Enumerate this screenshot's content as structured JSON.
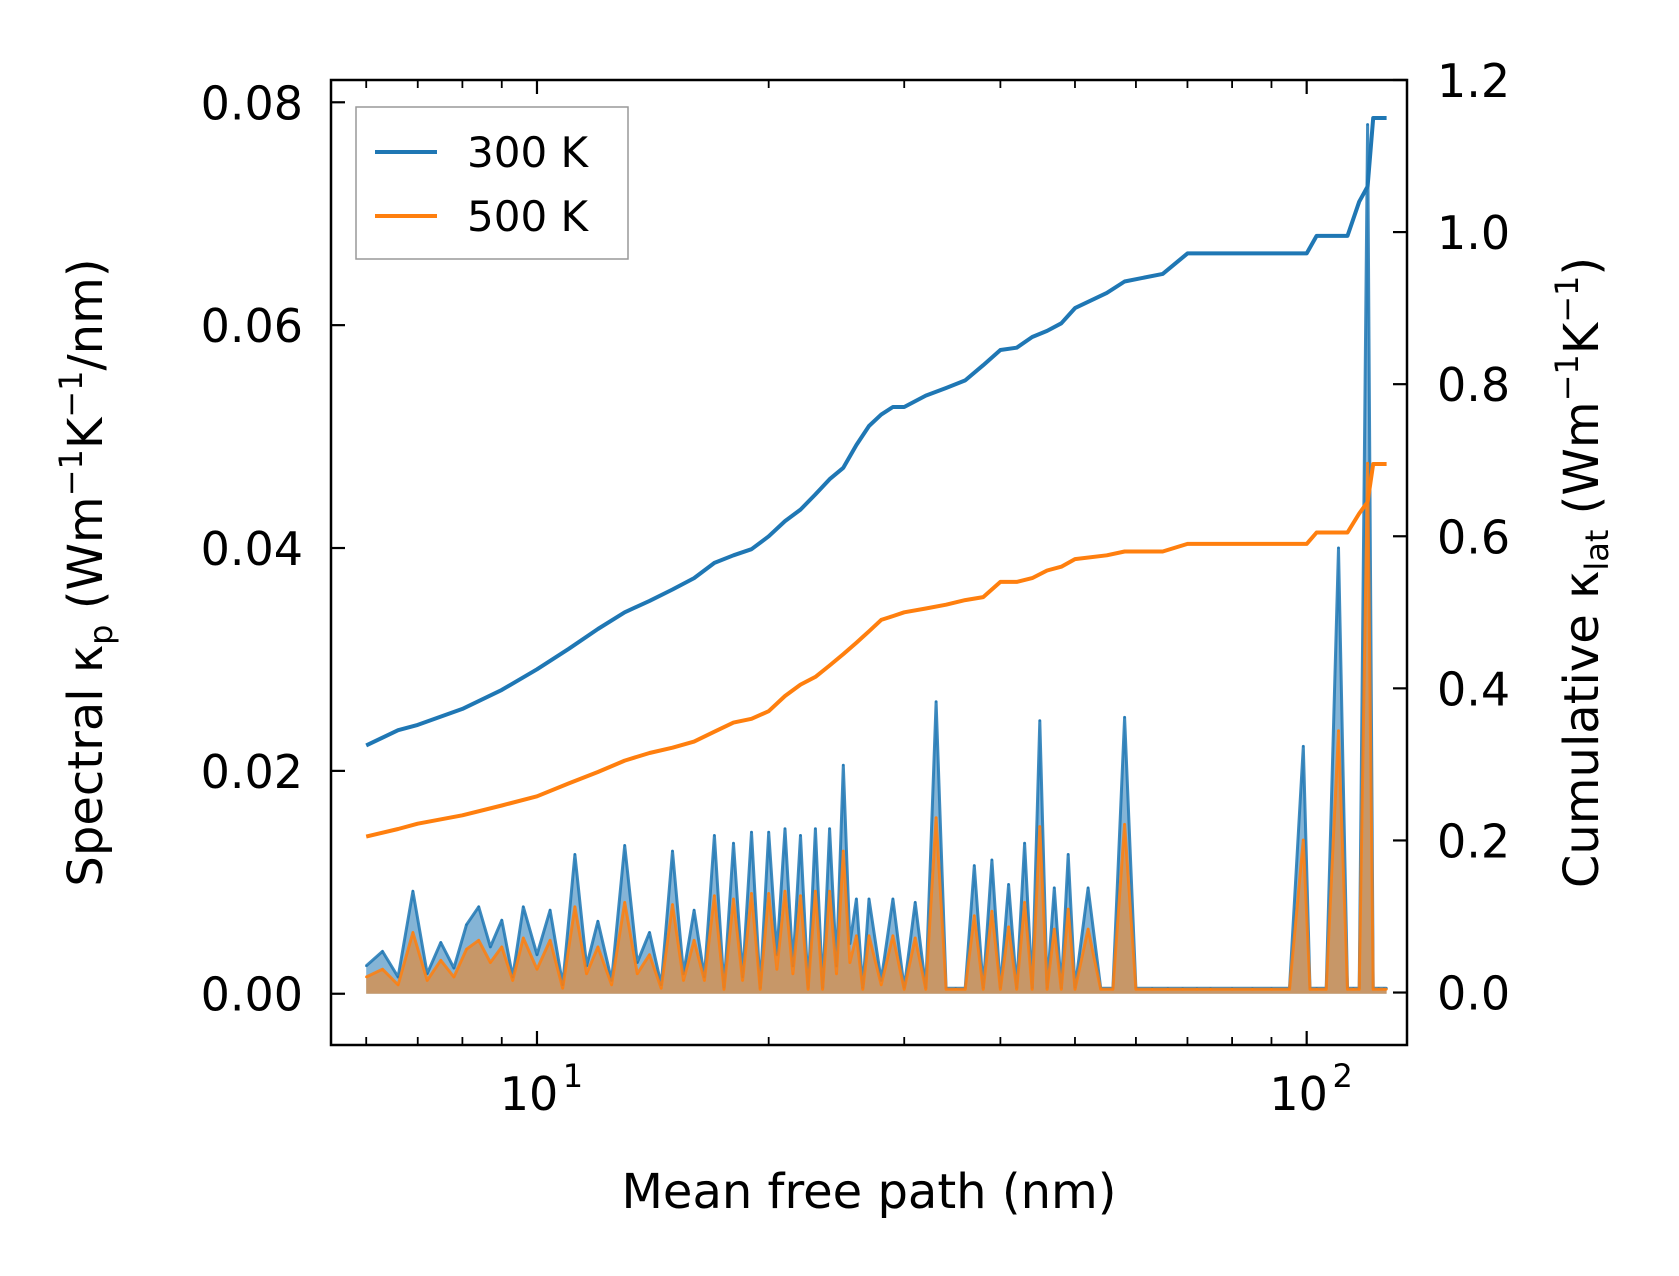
{
  "chart_data": {
    "type": "line",
    "xscale": "log",
    "xlabel": "Mean free path (nm)",
    "ylabel_left": "Spectral κ",
    "ylabel_left_sub": "p",
    "ylabel_left_units": "(Wm",
    "ylabel_right": "Cumulative κ",
    "ylabel_right_sub": "lat",
    "ylabel_right_units": "(Wm",
    "unit_sup": "−1",
    "unit_K": "K",
    "unit_per_nm": "/nm)",
    "unit_close": ")",
    "xlim": [
      5.4,
      135
    ],
    "ylim_left": [
      -0.0046,
      0.082
    ],
    "ylim_right": [
      -0.069,
      1.2
    ],
    "x_ticks": [
      {
        "value": 10,
        "base": "10",
        "exp": "1"
      },
      {
        "value": 100,
        "base": "10",
        "exp": "2"
      }
    ],
    "y_left_ticks": [
      "0.00",
      "0.02",
      "0.04",
      "0.06",
      "0.08"
    ],
    "y_right_ticks": [
      "0.0",
      "0.2",
      "0.4",
      "0.6",
      "0.8",
      "1.0",
      "1.2"
    ],
    "legend": {
      "placement": "top-left",
      "entries": [
        {
          "label": "300 K",
          "color": "#1f77b4"
        },
        {
          "label": "500 K",
          "color": "#ff7f0e"
        }
      ]
    },
    "series": [
      {
        "name": "300 K",
        "color": "#1f77b4",
        "cumulative": {
          "x": [
            6.0,
            6.6,
            7.0,
            8.0,
            9.0,
            10.0,
            11.0,
            12.0,
            13.0,
            14.0,
            15.0,
            16.0,
            17.0,
            18.0,
            19.0,
            20.0,
            21.0,
            22.0,
            23.0,
            24.0,
            25.0,
            26.0,
            27.0,
            28.0,
            29.0,
            30.0,
            32.0,
            34.0,
            36.0,
            38.0,
            40.0,
            42.0,
            44.0,
            46.0,
            48.0,
            50.0,
            55.0,
            58.0,
            65.0,
            70.0,
            80.0,
            90.0,
            100.0,
            103.0,
            113.0,
            117.0,
            120.0,
            122.0,
            127.0
          ],
          "y": [
            0.325,
            0.345,
            0.352,
            0.373,
            0.398,
            0.425,
            0.452,
            0.478,
            0.5,
            0.515,
            0.53,
            0.545,
            0.565,
            0.575,
            0.583,
            0.6,
            0.62,
            0.635,
            0.655,
            0.675,
            0.69,
            0.72,
            0.745,
            0.76,
            0.77,
            0.77,
            0.785,
            0.795,
            0.805,
            0.825,
            0.845,
            0.848,
            0.862,
            0.87,
            0.88,
            0.9,
            0.92,
            0.935,
            0.945,
            0.972,
            0.972,
            0.972,
            0.972,
            0.995,
            0.995,
            1.04,
            1.06,
            1.15,
            1.15
          ]
        },
        "spectral": {
          "x": [
            6.0,
            6.3,
            6.6,
            6.9,
            7.2,
            7.5,
            7.8,
            8.1,
            8.4,
            8.7,
            9.0,
            9.3,
            9.6,
            10.0,
            10.4,
            10.8,
            11.2,
            11.6,
            12.0,
            12.5,
            13.0,
            13.5,
            14.0,
            14.5,
            15.0,
            15.5,
            16.0,
            16.5,
            17.0,
            17.5,
            18.0,
            18.5,
            19.0,
            19.5,
            20.0,
            20.5,
            21.0,
            21.5,
            22.0,
            22.5,
            23.0,
            23.5,
            24.0,
            24.5,
            25.0,
            25.5,
            26.0,
            26.5,
            27.0,
            28.0,
            29.0,
            30.0,
            31.0,
            32.0,
            33.0,
            34.0,
            35.0,
            36.0,
            37.0,
            38.0,
            39.0,
            40.0,
            41.0,
            42.0,
            43.0,
            44.0,
            45.0,
            46.0,
            47.0,
            48.0,
            49.0,
            50.0,
            52.0,
            54.0,
            56.0,
            58.0,
            60.0,
            63.0,
            66.0,
            69.0,
            72.0,
            75.0,
            80.0,
            85.0,
            90.0,
            95.0,
            99.0,
            101.0,
            103.0,
            106.0,
            110.0,
            113.0,
            115.0,
            117.0,
            120.0,
            122.0,
            124.0,
            126.0,
            127.0
          ],
          "y": [
            0.0025,
            0.0038,
            0.0015,
            0.0092,
            0.0018,
            0.0046,
            0.0023,
            0.0062,
            0.0078,
            0.0042,
            0.0066,
            0.0015,
            0.0078,
            0.0035,
            0.0075,
            0.0008,
            0.0125,
            0.0025,
            0.0065,
            0.0012,
            0.0133,
            0.0028,
            0.0055,
            0.0008,
            0.0128,
            0.0018,
            0.0075,
            0.0015,
            0.0142,
            0.0005,
            0.0135,
            0.0015,
            0.0145,
            0.0005,
            0.0145,
            0.0035,
            0.0148,
            0.0025,
            0.0142,
            0.0005,
            0.0148,
            0.0005,
            0.0148,
            0.0025,
            0.0205,
            0.0045,
            0.0085,
            0.0005,
            0.0085,
            0.0012,
            0.0085,
            0.0005,
            0.0082,
            0.0005,
            0.0262,
            0.0005,
            0.0005,
            0.0005,
            0.0115,
            0.0005,
            0.012,
            0.0005,
            0.0098,
            0.0005,
            0.0135,
            0.0005,
            0.0245,
            0.0005,
            0.0095,
            0.0005,
            0.0125,
            0.0005,
            0.0095,
            0.0005,
            0.0005,
            0.0248,
            0.0005,
            0.0005,
            0.0005,
            0.0005,
            0.0005,
            0.0005,
            0.0005,
            0.0005,
            0.0005,
            0.0005,
            0.0222,
            0.0005,
            0.0005,
            0.0005,
            0.04,
            0.0005,
            0.0005,
            0.0005,
            0.078,
            0.0005,
            0.0005,
            0.0005,
            0.0005
          ]
        }
      },
      {
        "name": "500 K",
        "color": "#ff7f0e",
        "cumulative": {
          "x": [
            6.0,
            6.6,
            7.0,
            8.0,
            9.0,
            10.0,
            11.0,
            12.0,
            13.0,
            14.0,
            15.0,
            16.0,
            17.0,
            18.0,
            19.0,
            20.0,
            21.0,
            22.0,
            23.0,
            24.0,
            25.0,
            26.0,
            27.0,
            28.0,
            29.0,
            30.0,
            32.0,
            34.0,
            36.0,
            38.0,
            40.0,
            42.0,
            44.0,
            46.0,
            48.0,
            50.0,
            55.0,
            58.0,
            65.0,
            70.0,
            80.0,
            90.0,
            100.0,
            103.0,
            113.0,
            117.0,
            120.0,
            122.0,
            127.0
          ],
          "y": [
            0.205,
            0.215,
            0.222,
            0.233,
            0.246,
            0.258,
            0.275,
            0.29,
            0.305,
            0.315,
            0.322,
            0.33,
            0.343,
            0.355,
            0.36,
            0.37,
            0.39,
            0.405,
            0.415,
            0.43,
            0.445,
            0.46,
            0.475,
            0.49,
            0.495,
            0.5,
            0.505,
            0.51,
            0.516,
            0.52,
            0.54,
            0.54,
            0.545,
            0.555,
            0.56,
            0.57,
            0.575,
            0.58,
            0.58,
            0.59,
            0.59,
            0.59,
            0.59,
            0.605,
            0.605,
            0.63,
            0.645,
            0.695,
            0.695
          ]
        },
        "spectral": {
          "x": [
            6.0,
            6.3,
            6.6,
            6.9,
            7.2,
            7.5,
            7.8,
            8.1,
            8.4,
            8.7,
            9.0,
            9.3,
            9.6,
            10.0,
            10.4,
            10.8,
            11.2,
            11.6,
            12.0,
            12.5,
            13.0,
            13.5,
            14.0,
            14.5,
            15.0,
            15.5,
            16.0,
            16.5,
            17.0,
            17.5,
            18.0,
            18.5,
            19.0,
            19.5,
            20.0,
            20.5,
            21.0,
            21.5,
            22.0,
            22.5,
            23.0,
            23.5,
            24.0,
            24.5,
            25.0,
            25.5,
            26.0,
            26.5,
            27.0,
            28.0,
            29.0,
            30.0,
            31.0,
            32.0,
            33.0,
            34.0,
            35.0,
            36.0,
            37.0,
            38.0,
            39.0,
            40.0,
            41.0,
            42.0,
            43.0,
            44.0,
            45.0,
            46.0,
            47.0,
            48.0,
            49.0,
            50.0,
            52.0,
            54.0,
            56.0,
            58.0,
            60.0,
            63.0,
            66.0,
            69.0,
            72.0,
            75.0,
            80.0,
            85.0,
            90.0,
            95.0,
            99.0,
            101.0,
            103.0,
            106.0,
            110.0,
            113.0,
            115.0,
            117.0,
            120.0,
            122.0,
            124.0,
            126.0,
            127.0
          ],
          "y": [
            0.0015,
            0.0022,
            0.0008,
            0.0055,
            0.0012,
            0.003,
            0.0015,
            0.004,
            0.0048,
            0.0028,
            0.0042,
            0.0012,
            0.005,
            0.0022,
            0.0048,
            0.0005,
            0.0078,
            0.0018,
            0.0042,
            0.0008,
            0.0082,
            0.0018,
            0.0035,
            0.0005,
            0.008,
            0.0012,
            0.0048,
            0.0012,
            0.0088,
            0.0004,
            0.0085,
            0.0012,
            0.009,
            0.0004,
            0.009,
            0.0022,
            0.0092,
            0.0018,
            0.0088,
            0.0004,
            0.0092,
            0.0004,
            0.0092,
            0.0018,
            0.0128,
            0.0028,
            0.0052,
            0.0004,
            0.0052,
            0.0008,
            0.0052,
            0.0004,
            0.005,
            0.0004,
            0.0158,
            0.0004,
            0.0004,
            0.0004,
            0.007,
            0.0004,
            0.0074,
            0.0004,
            0.006,
            0.0004,
            0.0082,
            0.0004,
            0.015,
            0.0004,
            0.0058,
            0.0004,
            0.0076,
            0.0004,
            0.0058,
            0.0004,
            0.0004,
            0.0152,
            0.0004,
            0.0004,
            0.0004,
            0.0004,
            0.0004,
            0.0004,
            0.0004,
            0.0004,
            0.0004,
            0.0004,
            0.0138,
            0.0004,
            0.0004,
            0.0004,
            0.0236,
            0.0004,
            0.0004,
            0.0004,
            0.0476,
            0.0004,
            0.0004,
            0.0004,
            0.0004
          ]
        }
      }
    ]
  }
}
